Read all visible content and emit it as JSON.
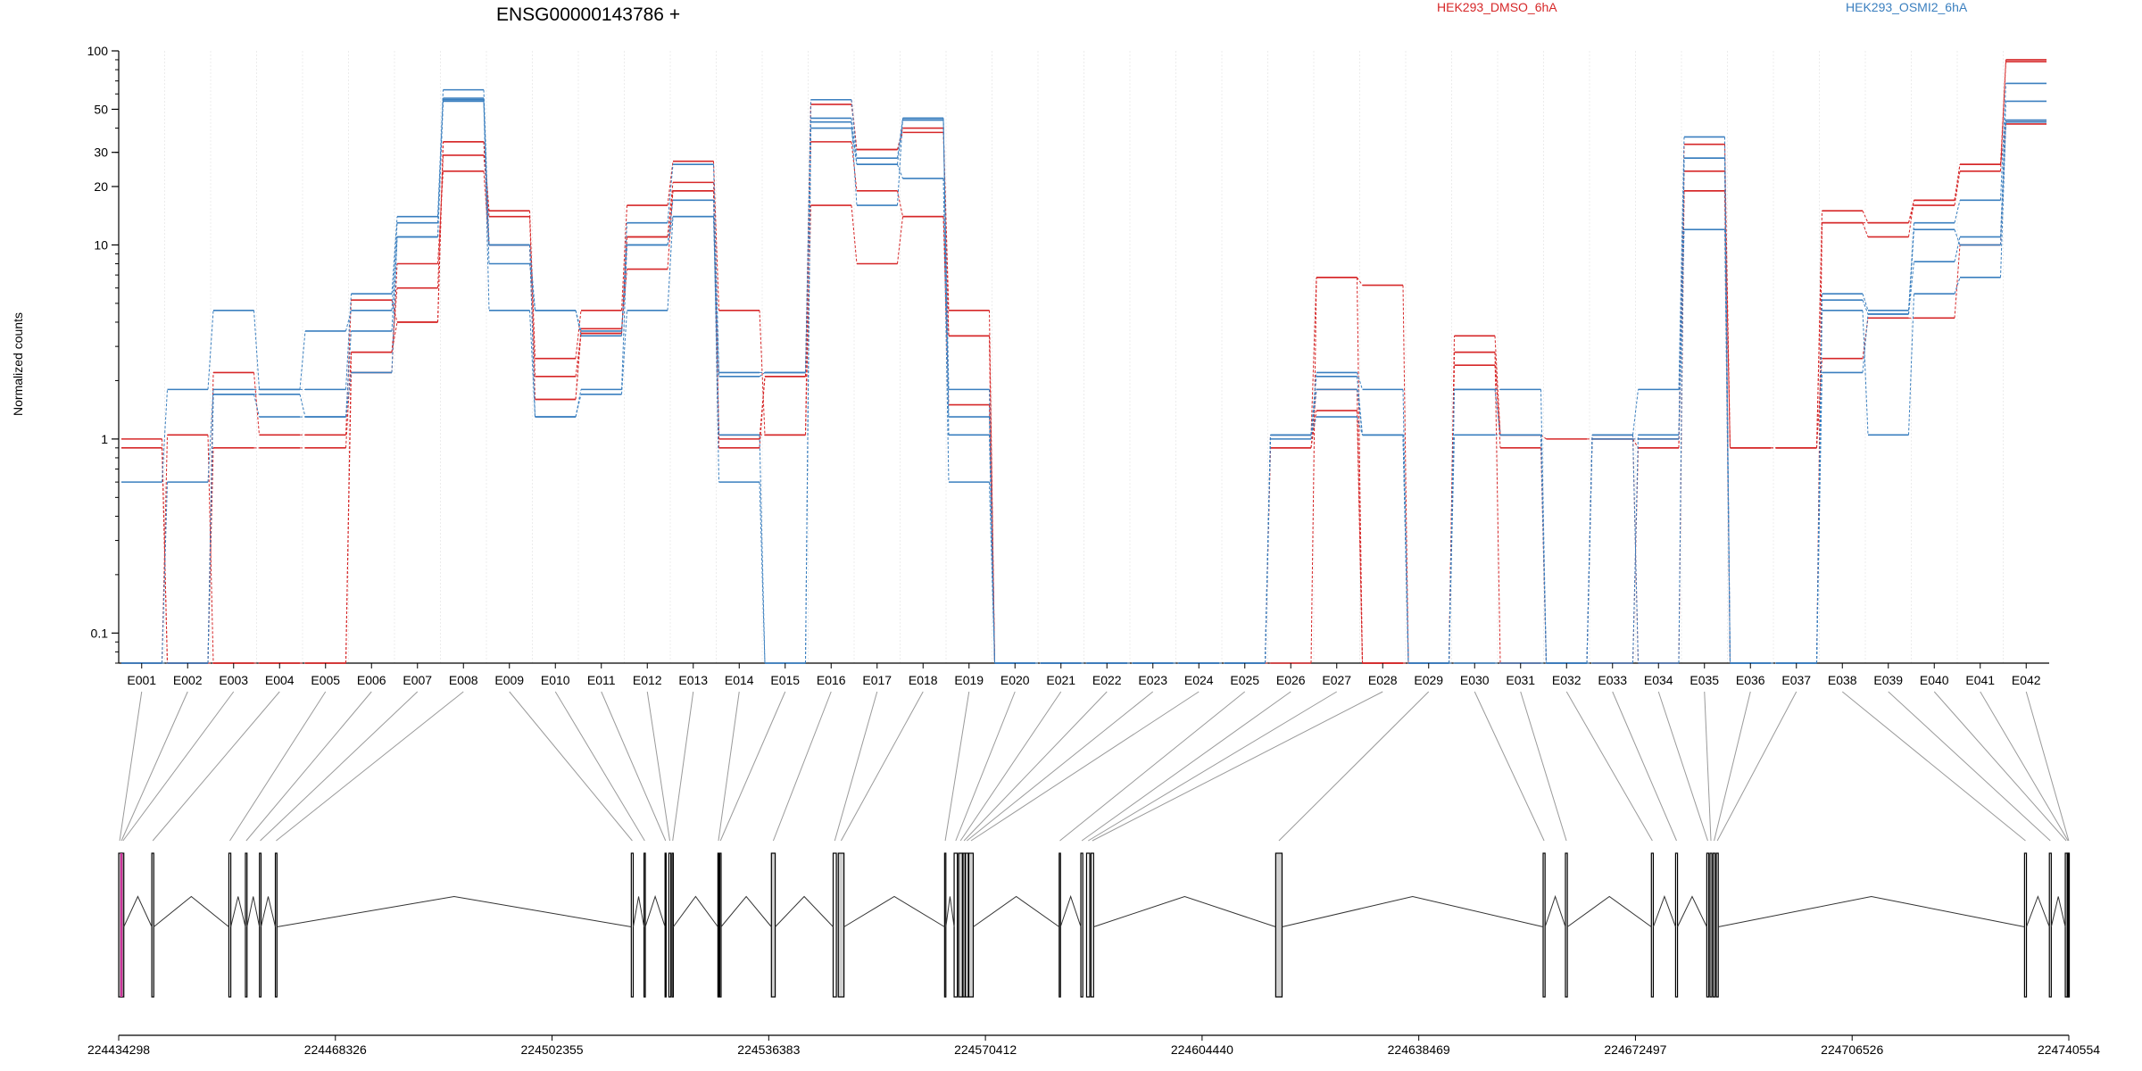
{
  "chart_data": {
    "type": "line",
    "title": "ENSG00000143786 +",
    "ylabel": "Normalized counts",
    "xlabel": "",
    "y_scale": "log",
    "ylim": [
      0.07,
      100
    ],
    "y_ticks": [
      0.1,
      1,
      10,
      20,
      30,
      50,
      100
    ],
    "y_tick_labels": [
      "0.1",
      "1",
      "10",
      "20",
      "30",
      "50",
      "100"
    ],
    "grid": "vertical lines at exon boundaries",
    "legend_placement": "top",
    "categories": [
      "E001",
      "E002",
      "E003",
      "E004",
      "E005",
      "E006",
      "E007",
      "E008",
      "E009",
      "E010",
      "E011",
      "E012",
      "E013",
      "E014",
      "E015",
      "E016",
      "E017",
      "E018",
      "E019",
      "E020",
      "E021",
      "E022",
      "E023",
      "E024",
      "E025",
      "E026",
      "E027",
      "E028",
      "E029",
      "E030",
      "E031",
      "E032",
      "E033",
      "E034",
      "E035",
      "E036",
      "E037",
      "E038",
      "E039",
      "E040",
      "E041",
      "E042"
    ],
    "groups": [
      {
        "label": "HEK293_DMSO_6hA",
        "color": "#d62728"
      },
      {
        "label": "HEK293_OSMI2_6hA",
        "color": "#3a7fbf"
      }
    ],
    "series": [
      {
        "group": 0,
        "values": [
          1.0,
          0.07,
          2.2,
          1.05,
          1.05,
          5.2,
          4.0,
          34,
          15,
          2.6,
          4.6,
          16,
          27,
          4.6,
          1.05,
          56,
          31,
          40,
          4.6,
          0.07,
          0.07,
          0.07,
          0.07,
          0.07,
          0.07,
          1.05,
          6.8,
          0.07,
          0.07,
          3.4,
          1.05,
          1.0,
          1.0,
          1.0,
          33,
          0.9,
          0.9,
          15,
          13,
          17,
          26,
          90
        ]
      },
      {
        "group": 0,
        "values": [
          0.9,
          0.07,
          0.9,
          0.9,
          0.9,
          2.8,
          6.0,
          29,
          14,
          2.1,
          3.5,
          11,
          21,
          1.0,
          2.1,
          53,
          31,
          38,
          3.4,
          0.07,
          0.07,
          0.07,
          0.07,
          0.07,
          0.07,
          0.9,
          1.8,
          0.07,
          0.07,
          2.8,
          0.9,
          0.07,
          0.07,
          0.9,
          24,
          0.9,
          0.9,
          13,
          13,
          16,
          24,
          88
        ]
      },
      {
        "group": 0,
        "values": [
          0.07,
          0.07,
          0.07,
          0.07,
          0.07,
          2.2,
          8.0,
          24,
          10,
          1.6,
          3.7,
          7.5,
          19,
          0.9,
          2.1,
          34,
          19,
          14,
          1.5,
          0.07,
          0.07,
          0.07,
          0.07,
          0.07,
          0.07,
          0.9,
          1.4,
          0.07,
          0.07,
          2.4,
          1.05,
          0.07,
          1.0,
          0.9,
          19,
          0.9,
          0.9,
          2.6,
          4.2,
          4.2,
          10,
          43
        ]
      },
      {
        "group": 0,
        "values": [
          0.07,
          1.05,
          0.07,
          0.07,
          0.07,
          2.8,
          4.0,
          34,
          10,
          1.6,
          3.5,
          11,
          19,
          1.05,
          1.05,
          16,
          8,
          14,
          3.4,
          0.07,
          0.07,
          0.07,
          0.07,
          0.07,
          0.07,
          0.07,
          6.8,
          6.2,
          0.07,
          2.8,
          0.07,
          0.07,
          1.05,
          0.07,
          19,
          0.07,
          0.07,
          13,
          11,
          17,
          26,
          42
        ]
      },
      {
        "group": 1,
        "values": [
          0.6,
          1.8,
          4.6,
          1.8,
          1.8,
          5.6,
          14,
          63,
          10,
          4.6,
          3.4,
          13,
          26,
          2.2,
          2.2,
          56,
          28,
          45,
          1.8,
          0.07,
          0.07,
          0.07,
          0.07,
          0.07,
          0.07,
          1.05,
          2.2,
          1.8,
          0.07,
          1.8,
          1.8,
          0.07,
          1.05,
          1.8,
          36,
          0.07,
          0.07,
          5.6,
          4.6,
          13,
          17,
          68
        ]
      },
      {
        "group": 1,
        "values": [
          0.07,
          0.6,
          1.8,
          1.8,
          3.6,
          4.6,
          13,
          56,
          8,
          4.6,
          3.6,
          10,
          17,
          0.6,
          0.07,
          45,
          26,
          44,
          1.05,
          0.07,
          0.07,
          0.07,
          0.07,
          0.07,
          0.07,
          1.05,
          2.1,
          1.05,
          0.07,
          0.07,
          0.07,
          0.07,
          0.07,
          1.05,
          28,
          0.07,
          0.07,
          2.2,
          4.4,
          8.2,
          11,
          55
        ]
      },
      {
        "group": 1,
        "values": [
          0.07,
          0.07,
          1.7,
          1.3,
          1.3,
          2.2,
          11,
          55,
          4.6,
          1.3,
          1.7,
          4.6,
          14,
          1.05,
          0.07,
          40,
          26,
          22,
          0.6,
          0.07,
          0.07,
          0.07,
          0.07,
          0.07,
          0.07,
          1.05,
          1.3,
          1.05,
          0.07,
          1.8,
          1.05,
          0.07,
          1.0,
          1.0,
          12,
          0.07,
          0.07,
          4.6,
          1.05,
          5.6,
          6.8,
          44
        ]
      },
      {
        "group": 1,
        "values": [
          0.07,
          0.07,
          1.7,
          1.7,
          1.3,
          3.6,
          11,
          57,
          10,
          1.3,
          1.8,
          10,
          14,
          2.1,
          2.2,
          43,
          16,
          45,
          1.3,
          0.07,
          0.07,
          0.07,
          0.07,
          0.07,
          0.07,
          1.0,
          1.8,
          1.05,
          0.07,
          1.05,
          1.05,
          0.07,
          1.05,
          0.07,
          28,
          0.07,
          0.07,
          5.2,
          4.4,
          12,
          10,
          43
        ]
      }
    ],
    "genomic_axis": {
      "tick_labels": [
        "224434298",
        "224468326",
        "224502355",
        "224536383",
        "224570412",
        "224604440",
        "224638469",
        "224672497",
        "224706526",
        "224740554"
      ],
      "range": [
        224434298,
        224740554
      ]
    },
    "exon_coords": [
      [
        224434298,
        224434600
      ],
      [
        224434650,
        224434800
      ],
      [
        224434850,
        224435100
      ],
      [
        224439500,
        224439800
      ],
      [
        224451600,
        224451900
      ],
      [
        224454200,
        224454450
      ],
      [
        224456400,
        224456650
      ],
      [
        224458900,
        224459150
      ],
      [
        224514800,
        224515100
      ],
      [
        224516800,
        224517000
      ],
      [
        224520100,
        224520250
      ],
      [
        224520700,
        224521000
      ],
      [
        224521200,
        224521400
      ],
      [
        224528400,
        224528550
      ],
      [
        224528700,
        224528900
      ],
      [
        224536800,
        224537400
      ],
      [
        224546500,
        224547000
      ],
      [
        224547300,
        224548200
      ],
      [
        224564000,
        224564200
      ],
      [
        224565500,
        224566000
      ],
      [
        224566200,
        224566800
      ],
      [
        224566900,
        224567200
      ],
      [
        224567300,
        224567700
      ],
      [
        224567800,
        224568500
      ],
      [
        224582000,
        224582200
      ],
      [
        224585400,
        224585700
      ],
      [
        224586300,
        224586800
      ],
      [
        224587000,
        224587400
      ],
      [
        224616000,
        224617000
      ],
      [
        224658000,
        224658300
      ],
      [
        224661500,
        224661800
      ],
      [
        224675000,
        224675300
      ],
      [
        224678800,
        224679100
      ],
      [
        224683700,
        224684000
      ],
      [
        224684200,
        224684500
      ],
      [
        224684700,
        224685000
      ],
      [
        224685200,
        224685500
      ],
      [
        224733600,
        224733900
      ],
      [
        224737500,
        224737800
      ],
      [
        224740000,
        224740300
      ],
      [
        224740350,
        224740450
      ],
      [
        224740460,
        224740554
      ]
    ]
  }
}
